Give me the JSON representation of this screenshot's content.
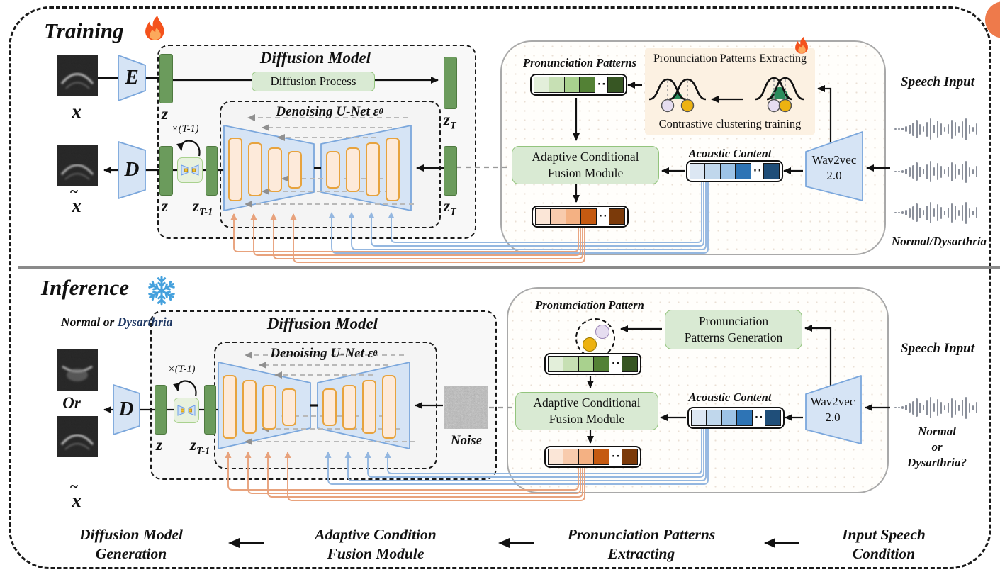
{
  "shared": {
    "z": "z",
    "sub_T": "T",
    "sub_T1": "T-1",
    "loop_label": "×(T-1)",
    "diffusion_model_title": "Diffusion Model",
    "unet_title": "Denoising U-Net",
    "unet_eps": "ε",
    "unet_theta": "θ",
    "acfm_line1": "Adaptive Conditional",
    "acfm_line2": "Fusion Module",
    "acoustic_content_label": "Acoustic Content",
    "wav2vec_line1": "Wav2vec",
    "wav2vec_line2": "2.0",
    "speech_input_label": "Speech Input",
    "dots": "··",
    "tilde": "~"
  },
  "training": {
    "title": "Training",
    "x_label": "x",
    "x_tilde_label": "x",
    "encoder_label": "E",
    "decoder_label": "D",
    "diffusion_process_label": "Diffusion Process",
    "pronunciation_patterns_label": "Pronunciation Patterns",
    "extracting_title": "Pronunciation Patterns Extracting",
    "extracting_caption": "Contrastive clustering training",
    "speech_type_label": "Normal/Dysarthria"
  },
  "inference": {
    "title": "Inference",
    "condition_prefix": "Normal  or ",
    "condition_highlight": "Dysarthria",
    "or_label": "Or",
    "x_tilde_label": "x",
    "decoder_label": "D",
    "noise_label": "Noise",
    "pronunciation_pattern_label": "Pronunciation Pattern",
    "generation_line1": "Pronunciation",
    "generation_line2": "Patterns Generation",
    "speech_type_line1": "Normal",
    "speech_type_line2": "or",
    "speech_type_line3": "Dysarthria?"
  },
  "flow": {
    "steps": [
      {
        "line1": "Diffusion Model",
        "line2": "Generation"
      },
      {
        "line1": "Adaptive Condition",
        "line2": "Fusion Module"
      },
      {
        "line1": "Pronunciation Patterns",
        "line2": "Extracting"
      },
      {
        "line1": "Input Speech",
        "line2": "Condition"
      }
    ]
  },
  "tokens": {
    "green": [
      "#e3efda",
      "#c7e0b4",
      "#a9d18e",
      "#538135",
      "#375623"
    ],
    "blue": [
      "#dce7f3",
      "#c0d7ec",
      "#9dc3e6",
      "#2e74b5",
      "#1f4e79"
    ],
    "orange": [
      "#fbe6d7",
      "#f8cbad",
      "#f4b183",
      "#c55a11",
      "#7b3a0a"
    ]
  },
  "colors": {
    "green_box_fill": "#d9ead3",
    "green_box_border": "#93c47d",
    "latent_bar": "#6b9b5c",
    "unet_bar_fill": "#fdeada",
    "unet_bar_border": "#e7a33e",
    "trapezoid_fill": "#d6e4f5",
    "trapezoid_border": "#7ba7dc",
    "condition_orange": "#e8a27c",
    "condition_blue": "#94b7e0",
    "fire": "#f4521c",
    "snowflake": "#45a1dd",
    "peach_box": "#fcf1e2",
    "panel_border": "#a9a9a9"
  }
}
